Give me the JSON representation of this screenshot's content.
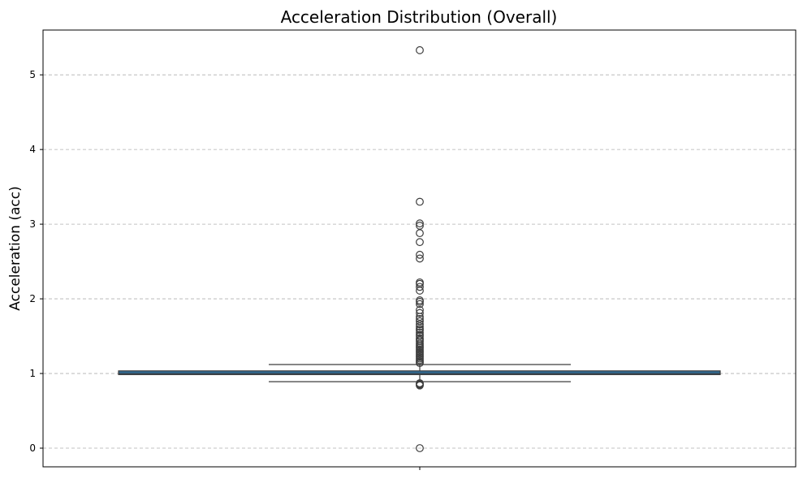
{
  "chart_data": {
    "type": "box",
    "title": "Acceleration Distribution (Overall)",
    "xlabel": "",
    "ylabel": "Acceleration (acc)",
    "ylim": [
      -0.25,
      5.6
    ],
    "yticks": [
      0,
      1,
      2,
      3,
      4,
      5
    ],
    "grid": "y-dashed",
    "box_color": "#2e6e9a",
    "line_color": "#3d3d3d",
    "box": {
      "q1": 0.985,
      "median": 1.0,
      "q3": 1.035,
      "whisker_low": 0.89,
      "whisker_high": 1.12
    },
    "fliers": [
      5.33,
      3.3,
      3.01,
      2.98,
      2.88,
      2.76,
      2.59,
      2.54,
      2.22,
      2.2,
      2.16,
      2.11,
      1.98,
      1.96,
      1.93,
      1.85,
      1.81,
      1.76,
      1.73,
      1.7,
      1.66,
      1.63,
      1.6,
      1.58,
      1.55,
      1.52,
      1.5,
      1.47,
      1.45,
      1.43,
      1.4,
      1.38,
      1.36,
      1.34,
      1.32,
      1.3,
      1.28,
      1.26,
      1.24,
      1.22,
      1.2,
      1.18,
      1.16,
      1.14,
      0.87,
      0.86,
      0.85,
      0.84,
      0.0
    ]
  }
}
